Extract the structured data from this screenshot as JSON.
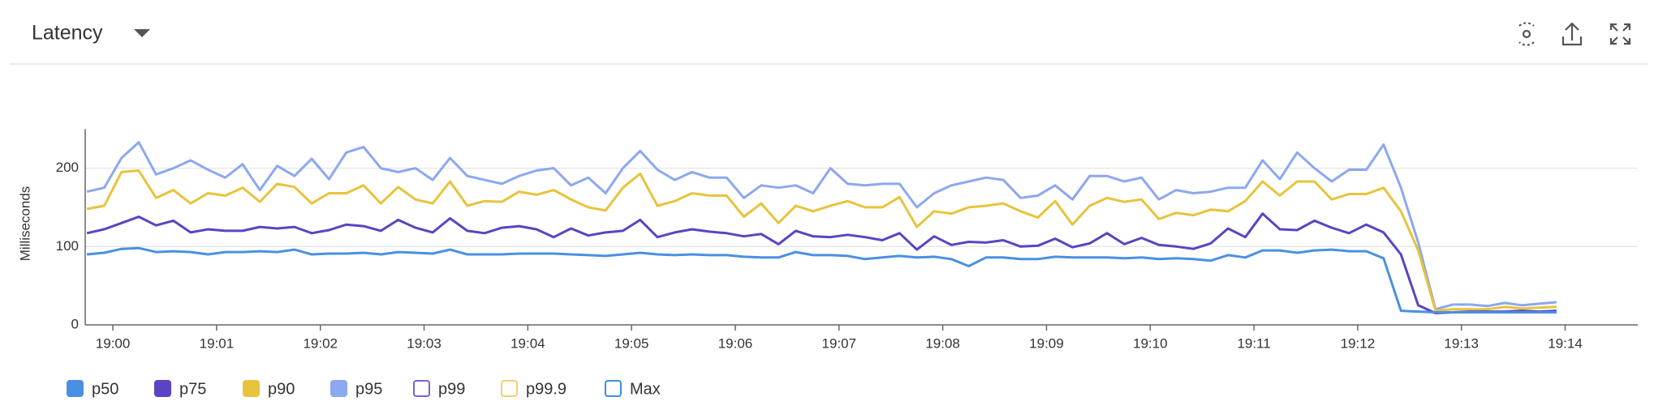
{
  "chart_data": {
    "type": "line",
    "title": "Latency",
    "y_label": "Milliseconds",
    "x": [
      -15,
      -5,
      5,
      15,
      25,
      35,
      45,
      55,
      65,
      75,
      85,
      95,
      105,
      115,
      125,
      135,
      145,
      155,
      165,
      175,
      185,
      195,
      205,
      215,
      225,
      235,
      245,
      255,
      265,
      275,
      285,
      295,
      305,
      315,
      325,
      335,
      345,
      355,
      365,
      375,
      385,
      395,
      405,
      415,
      425,
      435,
      445,
      455,
      465,
      475,
      485,
      495,
      505,
      515,
      525,
      535,
      545,
      555,
      565,
      575,
      585,
      595,
      605,
      615,
      625,
      635,
      645,
      655,
      665,
      675,
      685,
      695,
      705,
      715,
      725,
      735,
      745,
      755,
      765,
      775,
      785,
      795,
      805,
      815,
      825,
      835
    ],
    "xlim": [
      -16,
      882
    ],
    "xticks": [
      {
        "value": 0,
        "label": "19:00"
      },
      {
        "value": 60,
        "label": "19:01"
      },
      {
        "value": 120,
        "label": "19:02"
      },
      {
        "value": 180,
        "label": "19:03"
      },
      {
        "value": 240,
        "label": "19:04"
      },
      {
        "value": 300,
        "label": "19:05"
      },
      {
        "value": 360,
        "label": "19:06"
      },
      {
        "value": 420,
        "label": "19:07"
      },
      {
        "value": 480,
        "label": "19:08"
      },
      {
        "value": 540,
        "label": "19:09"
      },
      {
        "value": 600,
        "label": "19:10"
      },
      {
        "value": 660,
        "label": "19:11"
      },
      {
        "value": 720,
        "label": "19:12"
      },
      {
        "value": 780,
        "label": "19:13"
      },
      {
        "value": 840,
        "label": "19:14"
      }
    ],
    "ylim": [
      0,
      250
    ],
    "yticks": [
      0,
      100,
      200
    ],
    "grid": true,
    "series": [
      {
        "name": "p50",
        "color": "#4a90e2",
        "values": [
          90,
          92,
          97,
          98,
          93,
          94,
          93,
          90,
          93,
          93,
          94,
          93,
          96,
          90,
          91,
          91,
          92,
          90,
          93,
          92,
          91,
          96,
          90,
          90,
          90,
          91,
          91,
          91,
          90,
          89,
          88,
          90,
          92,
          90,
          89,
          90,
          89,
          89,
          87,
          86,
          86,
          93,
          89,
          89,
          88,
          84,
          86,
          88,
          86,
          87,
          84,
          75,
          86,
          86,
          84,
          84,
          87,
          86,
          86,
          86,
          85,
          86,
          84,
          85,
          84,
          82,
          89,
          86,
          95,
          95,
          92,
          95,
          96,
          94,
          94,
          85,
          18,
          17,
          16,
          16,
          16,
          16,
          16,
          16,
          16,
          16
        ]
      },
      {
        "name": "p75",
        "color": "#5b43c4",
        "values": [
          117,
          122,
          130,
          138,
          127,
          133,
          118,
          122,
          120,
          120,
          125,
          123,
          125,
          117,
          121,
          128,
          126,
          120,
          134,
          124,
          118,
          136,
          120,
          117,
          124,
          126,
          122,
          112,
          123,
          114,
          118,
          120,
          134,
          112,
          118,
          122,
          119,
          117,
          113,
          116,
          103,
          120,
          113,
          112,
          115,
          112,
          108,
          117,
          96,
          113,
          102,
          106,
          105,
          108,
          100,
          101,
          110,
          99,
          104,
          117,
          103,
          111,
          102,
          100,
          97,
          104,
          123,
          112,
          142,
          122,
          121,
          133,
          124,
          117,
          128,
          118,
          90,
          25,
          15,
          16,
          17,
          17,
          17,
          18,
          17,
          18
        ]
      },
      {
        "name": "p90",
        "color": "#e8c33c",
        "values": [
          148,
          152,
          195,
          197,
          162,
          172,
          155,
          168,
          165,
          175,
          157,
          180,
          176,
          155,
          168,
          168,
          178,
          155,
          176,
          160,
          155,
          183,
          152,
          158,
          157,
          170,
          166,
          172,
          160,
          150,
          146,
          175,
          193,
          152,
          158,
          168,
          165,
          165,
          138,
          155,
          130,
          152,
          145,
          152,
          158,
          150,
          150,
          163,
          125,
          145,
          142,
          150,
          152,
          155,
          145,
          137,
          158,
          128,
          152,
          162,
          157,
          160,
          135,
          143,
          140,
          147,
          145,
          158,
          183,
          165,
          183,
          183,
          160,
          167,
          167,
          175,
          145,
          95,
          18,
          20,
          20,
          20,
          23,
          21,
          22,
          23
        ]
      },
      {
        "name": "p95",
        "color": "#8ba8f0",
        "values": [
          170,
          175,
          213,
          233,
          192,
          200,
          210,
          198,
          188,
          205,
          172,
          203,
          190,
          212,
          186,
          220,
          227,
          200,
          195,
          200,
          185,
          213,
          190,
          185,
          180,
          190,
          197,
          200,
          178,
          188,
          168,
          200,
          222,
          198,
          185,
          195,
          188,
          188,
          162,
          178,
          175,
          178,
          168,
          200,
          180,
          178,
          180,
          180,
          150,
          168,
          178,
          183,
          188,
          185,
          162,
          165,
          178,
          160,
          190,
          190,
          183,
          188,
          160,
          172,
          168,
          170,
          175,
          175,
          210,
          186,
          220,
          200,
          183,
          198,
          198,
          230,
          175,
          105,
          20,
          26,
          26,
          24,
          28,
          25,
          27,
          29
        ]
      },
      {
        "name": "p99",
        "color": "#7b61d9",
        "hidden": true
      },
      {
        "name": "p99.9",
        "color": "#f0d070",
        "hidden": true
      },
      {
        "name": "Max",
        "color": "#3a8fe0",
        "hidden": true
      }
    ]
  }
}
